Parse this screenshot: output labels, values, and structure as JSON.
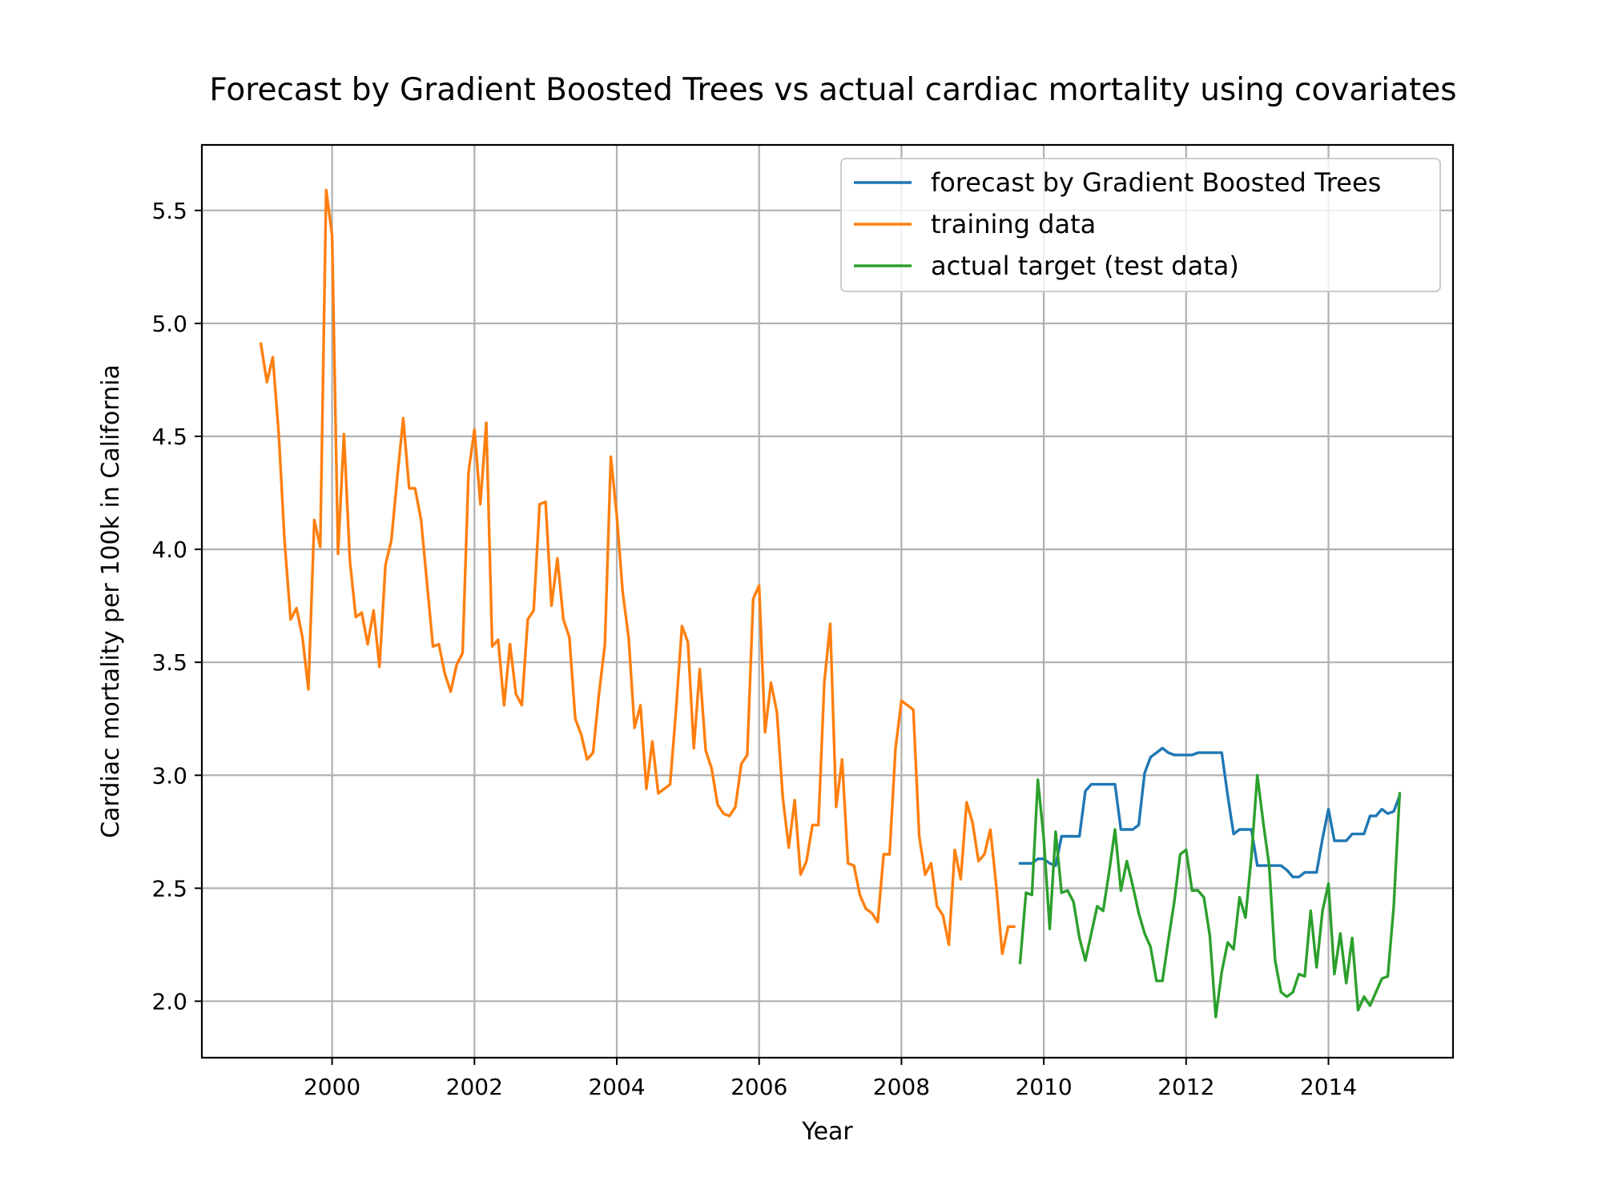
{
  "chart_data": {
    "type": "line",
    "title": "Forecast by Gradient Boosted Trees vs actual cardiac mortality using covariates",
    "xlabel": "Year",
    "ylabel": "Cardiac mortality per 100k in California",
    "xlim": [
      1998.17,
      2015.75
    ],
    "ylim": [
      1.75,
      5.79
    ],
    "x_ticks": [
      2000,
      2002,
      2004,
      2006,
      2008,
      2010,
      2012,
      2014
    ],
    "x_tick_labels": [
      "2000",
      "2002",
      "2004",
      "2006",
      "2008",
      "2010",
      "2012",
      "2014"
    ],
    "y_ticks": [
      2.0,
      2.5,
      3.0,
      3.5,
      4.0,
      4.5,
      5.0,
      5.5
    ],
    "y_tick_labels": [
      "2.0",
      "2.5",
      "3.0",
      "3.5",
      "4.0",
      "4.5",
      "5.0",
      "5.5"
    ],
    "grid": true,
    "legend_position": "top-right",
    "series": [
      {
        "name": "forecast by Gradient Boosted Trees",
        "color": "#1f77b4",
        "x_start": 2009.667,
        "x_step": 0.08333,
        "values": [
          2.61,
          2.61,
          2.61,
          2.63,
          2.63,
          2.61,
          2.6,
          2.73,
          2.73,
          2.73,
          2.73,
          2.93,
          2.96,
          2.96,
          2.96,
          2.96,
          2.96,
          2.76,
          2.76,
          2.76,
          2.78,
          3.01,
          3.08,
          3.1,
          3.12,
          3.1,
          3.09,
          3.09,
          3.09,
          3.09,
          3.1,
          3.1,
          3.1,
          3.1,
          3.1,
          2.91,
          2.74,
          2.76,
          2.76,
          2.76,
          2.6,
          2.6,
          2.6,
          2.6,
          2.6,
          2.58,
          2.55,
          2.55,
          2.57,
          2.57,
          2.57,
          2.72,
          2.85,
          2.71,
          2.71,
          2.71,
          2.74,
          2.74,
          2.74,
          2.82,
          2.82,
          2.85,
          2.83,
          2.84,
          2.91
        ]
      },
      {
        "name": "training data",
        "color": "#ff7f0e",
        "x_start": 1999.0,
        "x_step": 0.08333,
        "values": [
          4.91,
          4.74,
          4.85,
          4.51,
          4.03,
          3.69,
          3.74,
          3.61,
          3.38,
          4.13,
          4.01,
          5.59,
          5.39,
          3.98,
          4.51,
          3.95,
          3.7,
          3.72,
          3.58,
          3.73,
          3.48,
          3.93,
          4.04,
          4.32,
          4.58,
          4.27,
          4.27,
          4.13,
          3.85,
          3.57,
          3.58,
          3.45,
          3.37,
          3.49,
          3.54,
          4.34,
          4.53,
          4.2,
          4.56,
          3.57,
          3.6,
          3.31,
          3.58,
          3.36,
          3.31,
          3.69,
          3.73,
          4.2,
          4.21,
          3.75,
          3.96,
          3.69,
          3.61,
          3.25,
          3.18,
          3.07,
          3.1,
          3.36,
          3.58,
          4.41,
          4.15,
          3.81,
          3.61,
          3.21,
          3.31,
          2.94,
          3.15,
          2.92,
          2.94,
          2.96,
          3.29,
          3.66,
          3.59,
          3.12,
          3.47,
          3.11,
          3.03,
          2.87,
          2.83,
          2.82,
          2.86,
          3.05,
          3.09,
          3.78,
          3.84,
          3.19,
          3.41,
          3.28,
          2.9,
          2.68,
          2.89,
          2.56,
          2.62,
          2.78,
          2.78,
          3.41,
          3.67,
          2.86,
          3.07,
          2.61,
          2.6,
          2.47,
          2.41,
          2.39,
          2.35,
          2.65,
          2.65,
          3.12,
          3.33,
          3.31,
          3.29,
          2.73,
          2.56,
          2.61,
          2.42,
          2.38,
          2.25,
          2.67,
          2.54,
          2.88,
          2.79,
          2.62,
          2.65,
          2.76,
          2.51,
          2.21,
          2.33,
          2.33
        ]
      },
      {
        "name": "actual target (test data)",
        "color": "#2ca02c",
        "x_start": 2009.667,
        "x_step": 0.08333,
        "values": [
          2.17,
          2.48,
          2.47,
          2.98,
          2.72,
          2.32,
          2.75,
          2.48,
          2.49,
          2.44,
          2.28,
          2.18,
          2.3,
          2.42,
          2.4,
          2.57,
          2.76,
          2.49,
          2.62,
          2.51,
          2.39,
          2.3,
          2.24,
          2.09,
          2.09,
          2.27,
          2.44,
          2.65,
          2.67,
          2.49,
          2.49,
          2.46,
          2.29,
          1.93,
          2.13,
          2.26,
          2.23,
          2.46,
          2.37,
          2.64,
          3.0,
          2.79,
          2.6,
          2.18,
          2.04,
          2.02,
          2.04,
          2.12,
          2.11,
          2.4,
          2.15,
          2.4,
          2.52,
          2.12,
          2.3,
          2.08,
          2.28,
          1.96,
          2.02,
          1.98,
          2.04,
          2.1,
          2.11,
          2.42,
          2.92
        ]
      }
    ]
  }
}
